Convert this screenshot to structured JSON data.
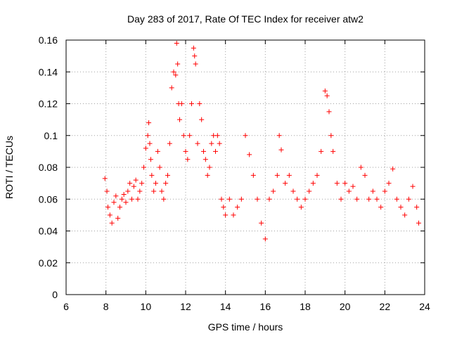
{
  "chart_data": {
    "type": "scatter",
    "title": "Day 283 of 2017, Rate Of TEC Index for receiver atw2",
    "xlabel": "GPS time / hours",
    "ylabel": "ROTI / TECUs",
    "xlim": [
      6,
      24
    ],
    "ylim": [
      0,
      0.16
    ],
    "x_ticks": [
      "6",
      "8",
      "10",
      "12",
      "14",
      "16",
      "18",
      "20",
      "22",
      "24"
    ],
    "y_ticks": [
      "0",
      "0.02",
      "0.04",
      "0.06",
      "0.08",
      "0.1",
      "0.12",
      "0.14",
      "0.16"
    ],
    "grid": true,
    "marker": "+",
    "color": "#ff0000",
    "series": [
      {
        "x": [
          7.95,
          8.05,
          8.1,
          8.2,
          8.3,
          8.4,
          8.5,
          8.6,
          8.7,
          8.8,
          8.9,
          9.0,
          9.1,
          9.2,
          9.3,
          9.4,
          9.5,
          9.6,
          9.7,
          9.8,
          9.9,
          10.0,
          10.1,
          10.15,
          10.2,
          10.25,
          10.3,
          10.4,
          10.5,
          10.6,
          10.7,
          10.8,
          10.9,
          11.0,
          11.1,
          11.2,
          11.3,
          11.4,
          11.5,
          11.55,
          11.6,
          11.65,
          11.7,
          11.8,
          11.9,
          12.0,
          12.1,
          12.2,
          12.3,
          12.4,
          12.45,
          12.5,
          12.6,
          12.7,
          12.8,
          12.9,
          13.0,
          13.1,
          13.2,
          13.3,
          13.4,
          13.5,
          13.6,
          13.7,
          13.8,
          13.9,
          14.0,
          14.2,
          14.4,
          14.6,
          14.8,
          15.0,
          15.2,
          15.4,
          15.6,
          15.8,
          16.0,
          16.2,
          16.4,
          16.6,
          16.7,
          16.8,
          17.0,
          17.2,
          17.4,
          17.6,
          17.8,
          18.0,
          18.2,
          18.4,
          18.6,
          18.8,
          19.0,
          19.1,
          19.2,
          19.3,
          19.4,
          19.6,
          19.8,
          20.0,
          20.2,
          20.4,
          20.6,
          20.8,
          21.0,
          21.2,
          21.4,
          21.6,
          21.8,
          22.0,
          22.2,
          22.4,
          22.6,
          22.8,
          23.0,
          23.2,
          23.4,
          23.6,
          23.7
        ],
        "y": [
          0.073,
          0.065,
          0.055,
          0.05,
          0.045,
          0.058,
          0.062,
          0.048,
          0.055,
          0.06,
          0.063,
          0.058,
          0.065,
          0.07,
          0.06,
          0.068,
          0.072,
          0.06,
          0.065,
          0.07,
          0.08,
          0.092,
          0.1,
          0.108,
          0.095,
          0.085,
          0.075,
          0.065,
          0.07,
          0.09,
          0.08,
          0.065,
          0.06,
          0.07,
          0.075,
          0.095,
          0.13,
          0.14,
          0.138,
          0.158,
          0.145,
          0.12,
          0.11,
          0.12,
          0.1,
          0.09,
          0.085,
          0.1,
          0.12,
          0.155,
          0.15,
          0.145,
          0.095,
          0.12,
          0.11,
          0.09,
          0.085,
          0.075,
          0.08,
          0.095,
          0.1,
          0.09,
          0.1,
          0.095,
          0.06,
          0.055,
          0.05,
          0.06,
          0.05,
          0.055,
          0.06,
          0.1,
          0.088,
          0.075,
          0.06,
          0.045,
          0.035,
          0.06,
          0.065,
          0.075,
          0.1,
          0.091,
          0.07,
          0.075,
          0.065,
          0.06,
          0.055,
          0.06,
          0.065,
          0.07,
          0.075,
          0.09,
          0.128,
          0.125,
          0.115,
          0.1,
          0.09,
          0.07,
          0.06,
          0.07,
          0.065,
          0.068,
          0.06,
          0.08,
          0.075,
          0.06,
          0.065,
          0.06,
          0.055,
          0.065,
          0.07,
          0.079,
          0.06,
          0.055,
          0.05,
          0.06,
          0.068,
          0.055,
          0.045
        ]
      }
    ]
  }
}
